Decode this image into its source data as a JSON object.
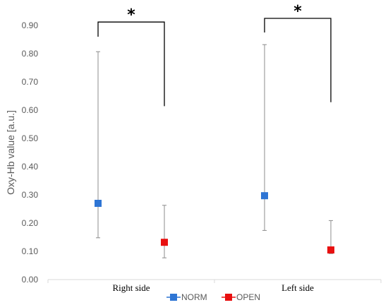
{
  "chart_data": {
    "type": "scatter",
    "title": "",
    "xlabel": "",
    "ylabel": "Oxy-Hb value [a.u.]",
    "ylim": [
      0,
      0.9
    ],
    "yticks": [
      "0.00",
      "0.10",
      "0.20",
      "0.30",
      "0.40",
      "0.50",
      "0.60",
      "0.70",
      "0.80",
      "0.90"
    ],
    "categories": [
      "Right side",
      "Left side"
    ],
    "grid": false,
    "legend_position": "bottom",
    "series": [
      {
        "name": "NORM",
        "color": "#2E75D4",
        "values": [
          0.27,
          0.297
        ],
        "error_low": [
          0.148,
          0.174
        ],
        "error_high": [
          0.807,
          0.832
        ]
      },
      {
        "name": "OPEN",
        "color": "#E81010",
        "values": [
          0.132,
          0.105
        ],
        "error_low": [
          0.077,
          0.092
        ],
        "error_high": [
          0.263,
          0.209
        ]
      }
    ],
    "annotations": [
      {
        "category_index": 0,
        "text": "*",
        "bracket_top": 0.912,
        "left_end": 0.86,
        "right_end": 0.614
      },
      {
        "category_index": 1,
        "text": "*",
        "bracket_top": 0.925,
        "left_end": 0.875,
        "right_end": 0.628
      }
    ]
  }
}
